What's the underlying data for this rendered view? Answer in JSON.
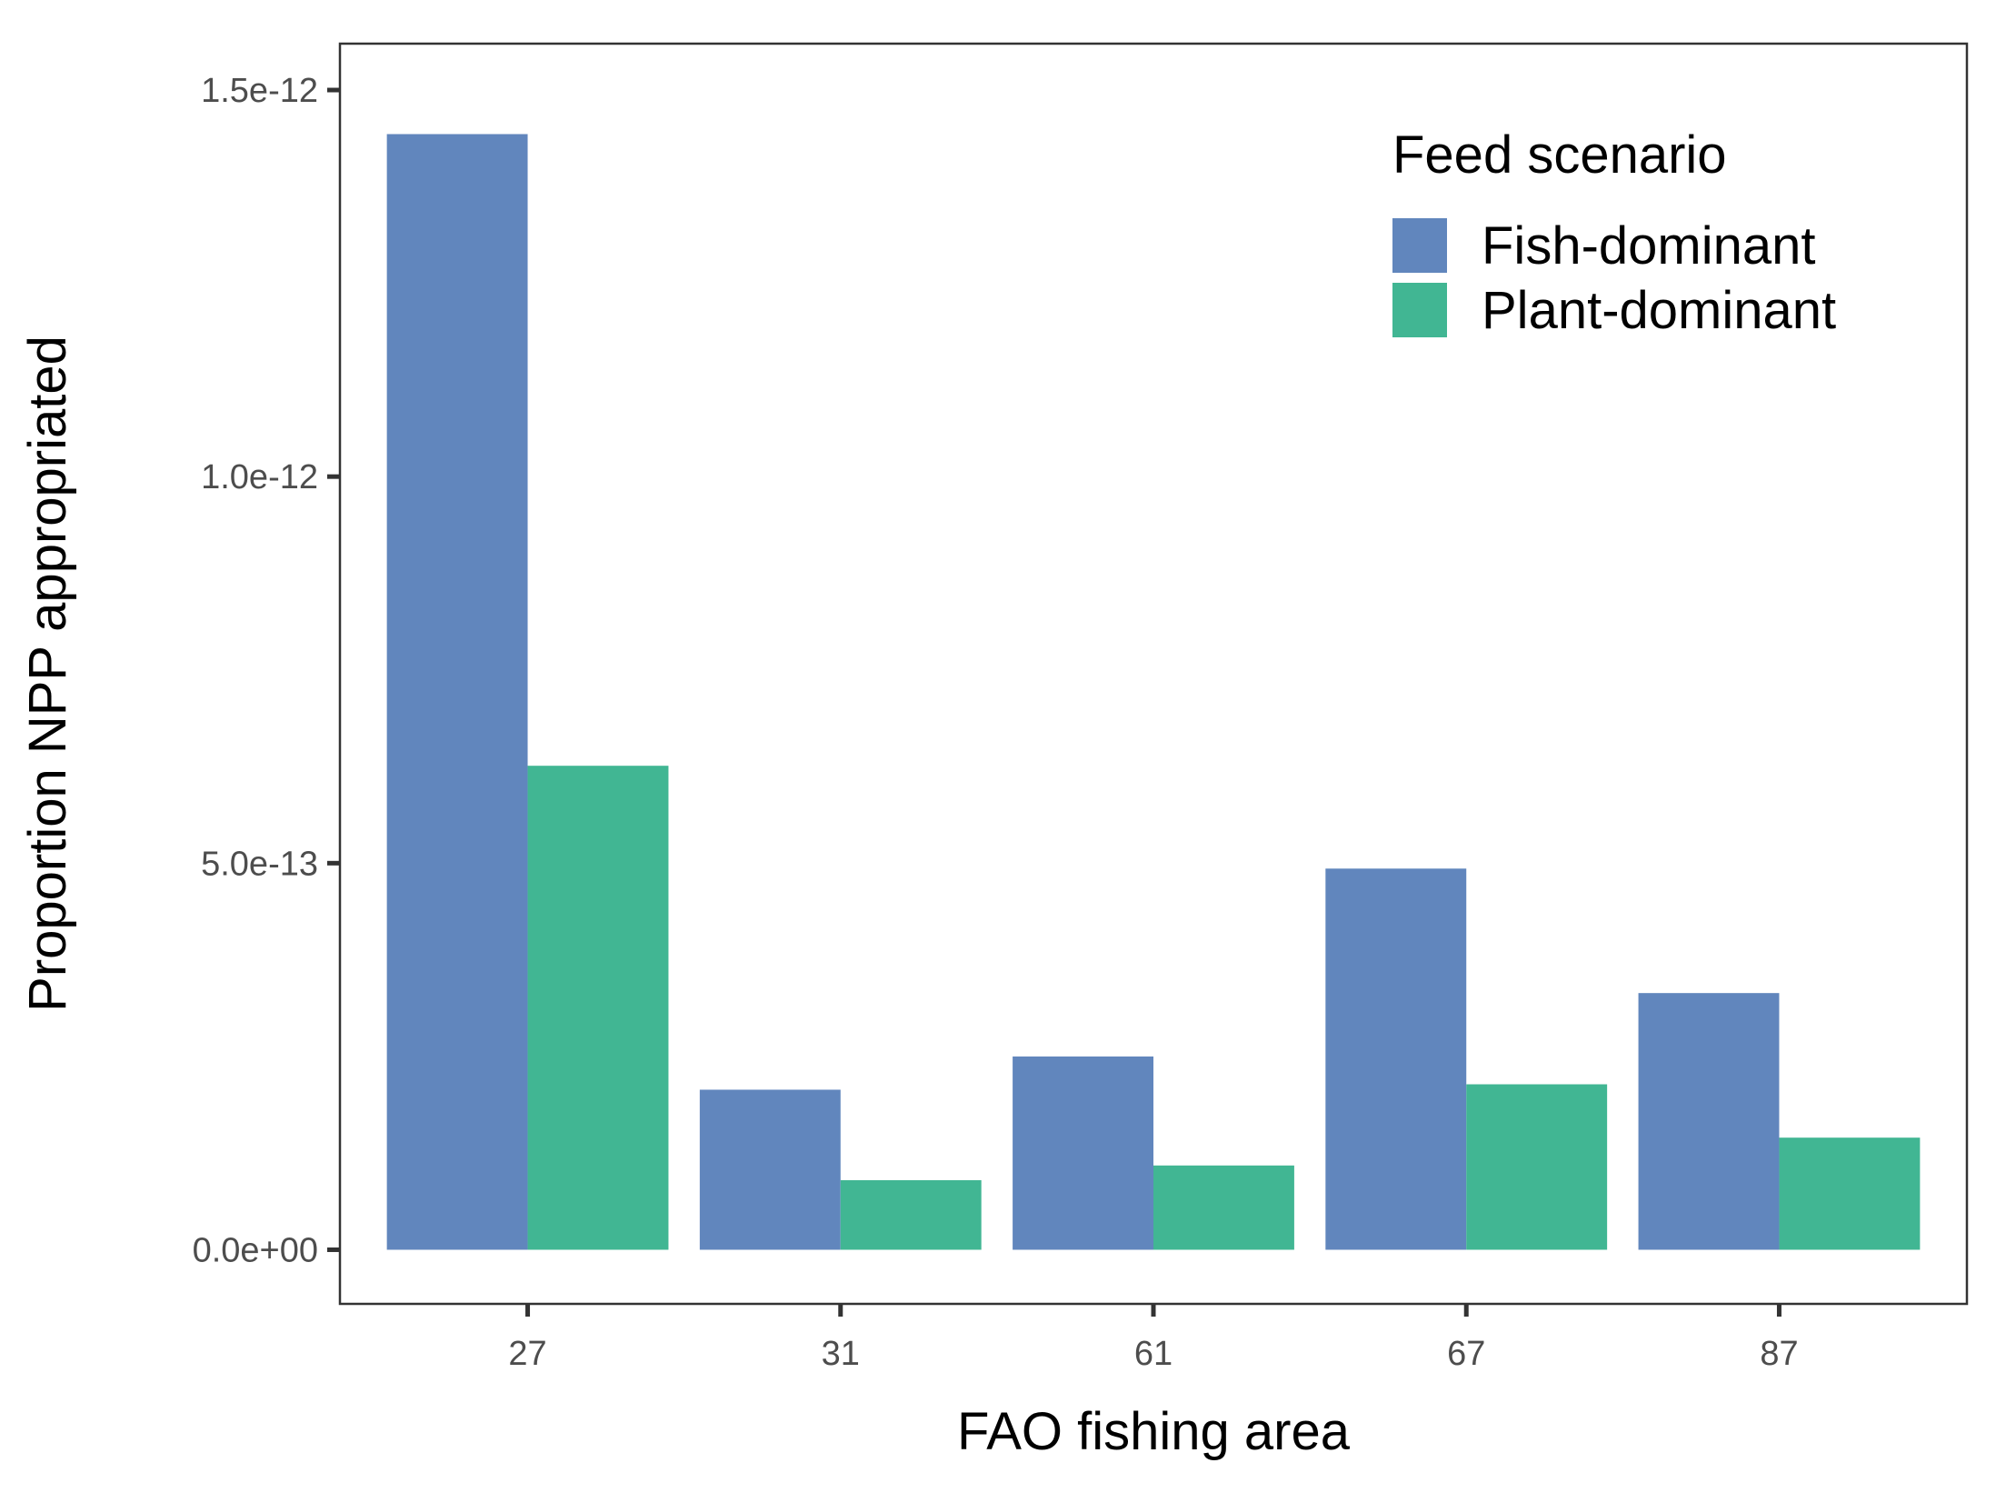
{
  "chart_data": {
    "type": "bar",
    "categories": [
      "27",
      "31",
      "61",
      "67",
      "87"
    ],
    "series": [
      {
        "name": "Fish-dominant",
        "color": "#6186bd",
        "values": [
          1.443e-12,
          2.07e-13,
          2.5e-13,
          4.93e-13,
          3.32e-13
        ]
      },
      {
        "name": "Plant-dominant",
        "color": "#41b693",
        "values": [
          6.26e-13,
          9e-14,
          1.09e-13,
          2.14e-13,
          1.45e-13
        ]
      }
    ],
    "xlabel": "FAO fishing area",
    "ylabel": "Proportion NPP appropriated",
    "ylim": [
      -7e-14,
      1.56e-12
    ],
    "yticks": [
      0,
      5e-13,
      1e-12,
      1.5e-12
    ],
    "ytick_labels": [
      "0.0e+00",
      "5.0e-13",
      "1.0e-12",
      "1.5e-12"
    ],
    "legend": {
      "title": "Feed scenario",
      "position": "top-right"
    },
    "grid": false
  }
}
